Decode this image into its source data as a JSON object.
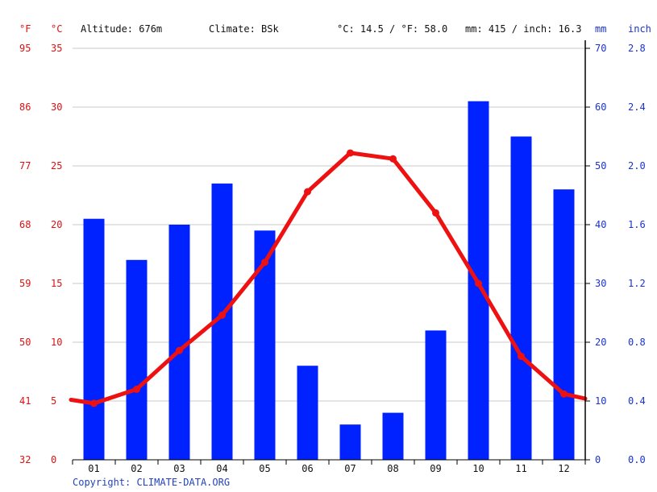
{
  "header": {
    "fahrenheit_unit": "°F",
    "celsius_unit": "°C",
    "altitude": "Altitude: 676m",
    "climate": "Climate: BSk",
    "avg_temp": "°C: 14.5 / °F: 58.0",
    "precip_total": "mm: 415 / inch: 16.3",
    "mm_unit": "mm",
    "inch_unit": "inch"
  },
  "copyright": "Copyright: CLIMATE-DATA.ORG",
  "colors": {
    "bars": "#0022ff",
    "line": "#ee1111",
    "grid": "#c8c8c8",
    "axis": "#000000",
    "temp_text": "#dd1111",
    "precip_text": "#1a33cc"
  },
  "chart_data": {
    "type": "bar+line",
    "categories": [
      "01",
      "02",
      "03",
      "04",
      "05",
      "06",
      "07",
      "08",
      "09",
      "10",
      "11",
      "12"
    ],
    "series": [
      {
        "type": "bar",
        "unit": "mm",
        "axis": "right",
        "values": [
          41,
          34,
          40,
          47,
          39,
          16,
          6,
          8,
          22,
          61,
          55,
          46
        ]
      },
      {
        "type": "line",
        "unit": "°C",
        "axis": "left",
        "values": [
          4.8,
          6.0,
          9.3,
          12.3,
          16.8,
          22.8,
          26.1,
          25.6,
          21.0,
          15.0,
          8.8,
          5.6
        ],
        "edge_start": 5.1,
        "edge_end": 5.2
      }
    ],
    "left_axis_c": {
      "ylim": [
        0,
        35
      ],
      "ticks": [
        "0",
        "5",
        "10",
        "15",
        "20",
        "25",
        "30",
        "35"
      ]
    },
    "left_axis_f": {
      "ticks": [
        "32",
        "41",
        "50",
        "59",
        "68",
        "77",
        "86",
        "95"
      ]
    },
    "right_axis_mm": {
      "ylim": [
        0,
        70
      ],
      "ticks": [
        "0",
        "10",
        "20",
        "30",
        "40",
        "50",
        "60",
        "70"
      ]
    },
    "right_axis_inch": {
      "ticks": [
        "0.0",
        "0.4",
        "0.8",
        "1.2",
        "1.6",
        "2.0",
        "2.4",
        "2.8"
      ]
    },
    "grid": true
  }
}
